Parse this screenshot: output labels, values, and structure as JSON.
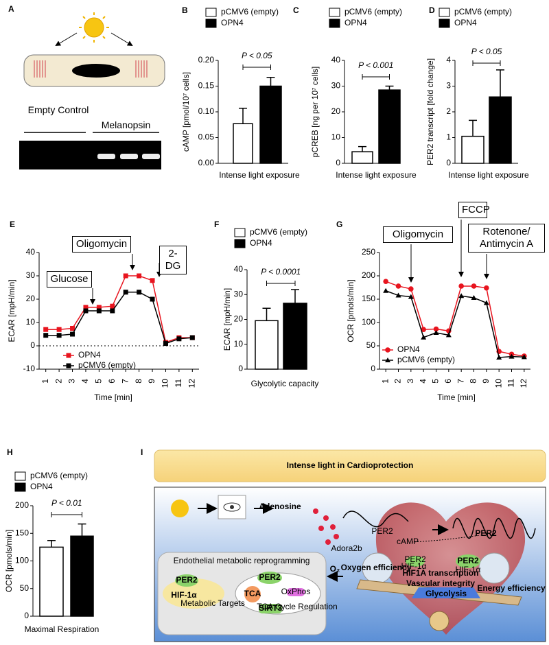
{
  "panel_A": {
    "label": "A",
    "texts": [
      "Empty Control",
      "Melanopsin"
    ]
  },
  "chart_data": [
    {
      "type": "bar",
      "panel": "B",
      "ylabel": "cAMP [pmol/10⁷ cells]",
      "xlabel": "Intense light exposure",
      "annotation": "P < 0.05",
      "ylim": [
        0,
        0.2
      ],
      "yticks": [
        {
          "value": 0,
          "label": "0.00"
        },
        {
          "value": 0.05,
          "label": "0.05"
        },
        {
          "value": 0.1,
          "label": "0.10"
        },
        {
          "value": 0.15,
          "label": "0.15"
        },
        {
          "value": 0.2,
          "label": "0.20"
        }
      ],
      "series": [
        {
          "name": "pCMV6 (empty)",
          "color": "#ffffff",
          "values": [
            0.077
          ],
          "errors": [
            0.03
          ]
        },
        {
          "name": "OPN4",
          "color": "#000000",
          "values": [
            0.15
          ],
          "errors": [
            0.017
          ]
        }
      ]
    },
    {
      "type": "bar",
      "panel": "C",
      "ylabel": "pCREB [ng per 10⁷ cells]",
      "xlabel": "Intense light exposure",
      "annotation": "P < 0.001",
      "ylim": [
        0,
        40
      ],
      "yticks": [
        0,
        10,
        20,
        30,
        40
      ],
      "series": [
        {
          "name": "pCMV6 (empty)",
          "color": "#ffffff",
          "values": [
            4.5
          ],
          "errors": [
            2
          ]
        },
        {
          "name": "OPN4",
          "color": "#000000",
          "values": [
            28.5
          ],
          "errors": [
            1.5
          ]
        }
      ]
    },
    {
      "type": "bar",
      "panel": "D",
      "ylabel": "PER2 transcript [fold change]",
      "xlabel": "Intense light exposure",
      "annotation": "P < 0.05",
      "ylim": [
        0,
        4
      ],
      "yticks": [
        0,
        1,
        2,
        3,
        4
      ],
      "series": [
        {
          "name": "pCMV6 (empty)",
          "color": "#ffffff",
          "values": [
            1.05
          ],
          "errors": [
            0.62
          ]
        },
        {
          "name": "OPN4",
          "color": "#000000",
          "values": [
            2.58
          ],
          "errors": [
            1.05
          ]
        }
      ]
    },
    {
      "type": "line",
      "panel": "E",
      "ylabel": "ECAR [mpH/min]",
      "xlabel": "Time [min]",
      "annotations": [
        "Glucose",
        "Oligomycin",
        "2-DG"
      ],
      "zero_line": true,
      "x": [
        1,
        2,
        3,
        4,
        5,
        6,
        7,
        8,
        9,
        10,
        11,
        12
      ],
      "xlim": [
        0.5,
        12.5
      ],
      "xticks": [
        1,
        2,
        3,
        4,
        5,
        6,
        7,
        8,
        9,
        10,
        11,
        12
      ],
      "ylim": [
        -10,
        40
      ],
      "yticks": [
        -10,
        0,
        10,
        20,
        30,
        40
      ],
      "series": [
        {
          "name": "OPN4",
          "color": "#e8141e",
          "marker": "square",
          "values": [
            7,
            7,
            7.5,
            16.5,
            16.5,
            17,
            30,
            30,
            28,
            1.5,
            3.5,
            3.5
          ]
        },
        {
          "name": "pCMV6 (empty)",
          "color": "#000000",
          "marker": "square",
          "values": [
            4.5,
            4.5,
            5,
            15,
            15,
            15,
            23,
            23,
            20,
            1,
            3,
            3.5
          ]
        }
      ]
    },
    {
      "type": "bar",
      "panel": "F",
      "ylabel": "ECAR [mpH/min]",
      "xlabel": "Glycolytic capacity",
      "annotation": "P < 0.0001",
      "ylim": [
        0,
        40
      ],
      "yticks": [
        0,
        10,
        20,
        30,
        40
      ],
      "series": [
        {
          "name": "pCMV6 (empty)",
          "color": "#ffffff",
          "values": [
            19.5
          ],
          "errors": [
            5
          ]
        },
        {
          "name": "OPN4",
          "color": "#000000",
          "values": [
            26.5
          ],
          "errors": [
            5.5
          ]
        }
      ]
    },
    {
      "type": "line",
      "panel": "G",
      "ylabel": "OCR [pmols/min]",
      "xlabel": "Time [min]",
      "annotations": [
        "Oligomycin",
        "FCCP",
        "Rotenone/ Antimycin A"
      ],
      "zero_line": false,
      "x": [
        1,
        2,
        3,
        4,
        5,
        6,
        7,
        8,
        9,
        10,
        11,
        12
      ],
      "xlim": [
        0.5,
        12.5
      ],
      "xticks": [
        1,
        2,
        3,
        4,
        5,
        6,
        7,
        8,
        9,
        10,
        11,
        12
      ],
      "ylim": [
        0,
        250
      ],
      "yticks": [
        0,
        50,
        100,
        150,
        200,
        250
      ],
      "series": [
        {
          "name": "OPN4",
          "color": "#e8141e",
          "marker": "circle",
          "values": [
            188,
            178,
            172,
            85,
            86,
            82,
            178,
            178,
            174,
            38,
            32,
            28
          ]
        },
        {
          "name": "pCMV6 (empty)",
          "color": "#000000",
          "marker": "triangle",
          "values": [
            168,
            158,
            155,
            68,
            78,
            73,
            157,
            153,
            142,
            25,
            27,
            26
          ]
        }
      ]
    },
    {
      "type": "bar",
      "panel": "H",
      "ylabel": "OCR [pmols/min]",
      "xlabel": "Maximal Respiration",
      "annotation": "P < 0.01",
      "ylim": [
        0,
        200
      ],
      "yticks": [
        0,
        50,
        100,
        150,
        200
      ],
      "series": [
        {
          "name": "pCMV6 (empty)",
          "color": "#ffffff",
          "values": [
            125
          ],
          "errors": [
            12
          ]
        },
        {
          "name": "OPN4",
          "color": "#000000",
          "values": [
            145
          ],
          "errors": [
            22
          ]
        }
      ]
    }
  ],
  "panel_I": {
    "label": "I",
    "title": "Intense light in Cardioprotection",
    "labels": [
      "Adenosine",
      "Adora2b",
      "PER2",
      "cAMP",
      "PER2",
      "HIF-1α",
      "PER2",
      "HIF-1α",
      "PER2",
      "HIF1A transcription",
      "Vascular integrity",
      "Oxygen efficiency",
      "Glycolysis",
      "Energy efficiency",
      "Endothelial metabolic reprogramming",
      "PER2",
      "HIF-1α",
      "Metabolic Targets",
      "PER2",
      "TCA",
      "SIRT3",
      "OxPhos",
      "TCA Cycle Regulation",
      "O₂"
    ]
  }
}
